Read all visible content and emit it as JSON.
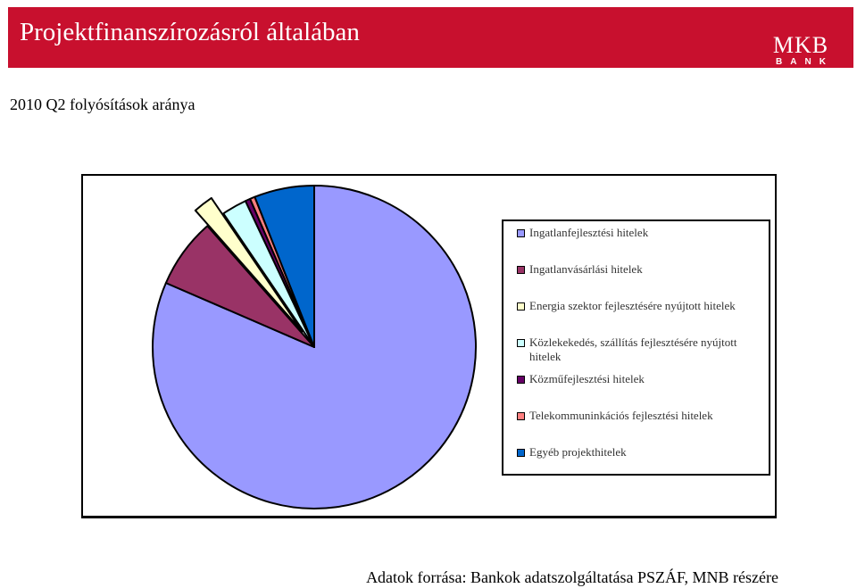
{
  "header": {
    "title": "Projektfinanszírozásról általában",
    "logo_text": "MKB",
    "logo_subtext": "BANK"
  },
  "subtitle": "2010 Q2 folyósítások aránya",
  "source": "Adatok forrása: Bankok adatszolgáltatása PSZÁF, MNB részére",
  "chart_data": {
    "type": "pie",
    "title": "",
    "legend_placement": "right",
    "slices": [
      {
        "label": "Ingatlanfejlesztési hitelek",
        "value": 81.5,
        "color": "#9999ff",
        "exploded": false
      },
      {
        "label": "Ingatlanvásárlási hitelek",
        "value": 7.0,
        "color": "#993366",
        "exploded": false
      },
      {
        "label": "Energia szektor fejlesztésére nyújtott hitelek",
        "value": 2.0,
        "color": "#ffffcc",
        "exploded": true
      },
      {
        "label": "Közlekekedés, szállítás fejlesztésére nyújtott hitelek",
        "value": 2.5,
        "color": "#ccffff",
        "exploded": false
      },
      {
        "label": "Közműfejlesztési hitelek",
        "value": 0.5,
        "color": "#660066",
        "exploded": false
      },
      {
        "label": "Telekommuninkációs fejlesztési hitelek",
        "value": 0.5,
        "color": "#ff8080",
        "exploded": false
      },
      {
        "label": "Egyéb projekthitelek",
        "value": 6.0,
        "color": "#0066cc",
        "exploded": false
      }
    ]
  }
}
